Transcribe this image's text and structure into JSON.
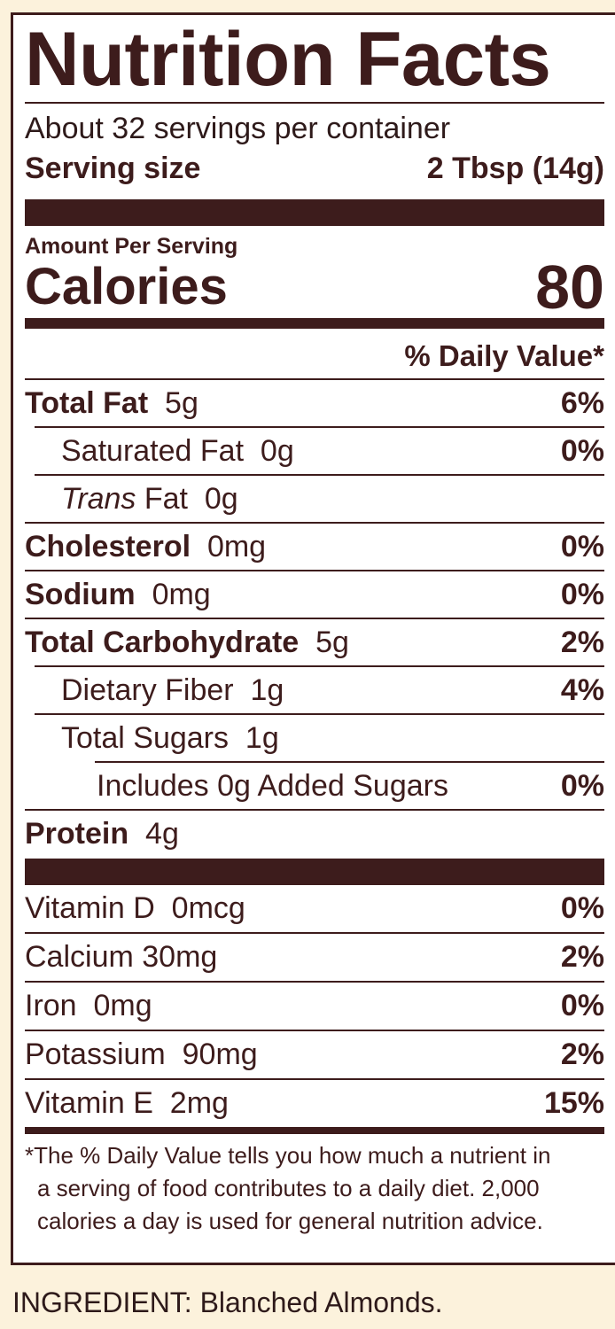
{
  "title": "Nutrition Facts",
  "servings_per_container": "About 32 servings per container",
  "serving_size": {
    "label": "Serving size",
    "value": "2 Tbsp (14g)"
  },
  "amount_per_serving": "Amount Per Serving",
  "calories": {
    "label": "Calories",
    "value": "80"
  },
  "daily_value_header": "% Daily Value*",
  "nutrients": [
    {
      "name": "Total Fat",
      "amount": "5g",
      "dv": "6%"
    },
    {
      "name": "Saturated Fat",
      "amount": "0g",
      "dv": "0%"
    },
    {
      "name_italic": "Trans",
      "name": "Fat",
      "amount": "0g",
      "dv": ""
    },
    {
      "name": "Cholesterol",
      "amount": "0mg",
      "dv": "0%"
    },
    {
      "name": "Sodium",
      "amount": "0mg",
      "dv": "0%"
    },
    {
      "name": "Total Carbohydrate",
      "amount": "5g",
      "dv": "2%"
    },
    {
      "name": "Dietary Fiber",
      "amount": "1g",
      "dv": "4%"
    },
    {
      "name": "Total Sugars",
      "amount": "1g",
      "dv": ""
    },
    {
      "name": "Includes 0g Added Sugars",
      "amount": "",
      "dv": "0%"
    },
    {
      "name": "Protein",
      "amount": "4g",
      "dv": ""
    }
  ],
  "vitamins": [
    {
      "name": "Vitamin D",
      "amount": "0mcg",
      "dv": "0%"
    },
    {
      "name": "Calcium",
      "amount": "30mg",
      "dv": "2%"
    },
    {
      "name": "Iron",
      "amount": "0mg",
      "dv": "0%"
    },
    {
      "name": "Potassium",
      "amount": "90mg",
      "dv": "2%"
    },
    {
      "name": "Vitamin E",
      "amount": "2mg",
      "dv": "15%"
    }
  ],
  "footnote": {
    "line1": "*The % Daily Value tells you how much a nutrient in",
    "line2": "a serving of food contributes to a daily diet. 2,000",
    "line3": "calories a day is used for general nutrition advice."
  },
  "ingredients": "INGREDIENT: Blanched Almonds.",
  "colors": {
    "ink": "#3d1c1c",
    "background": "#fcf2dc",
    "panel": "#ffffff"
  }
}
